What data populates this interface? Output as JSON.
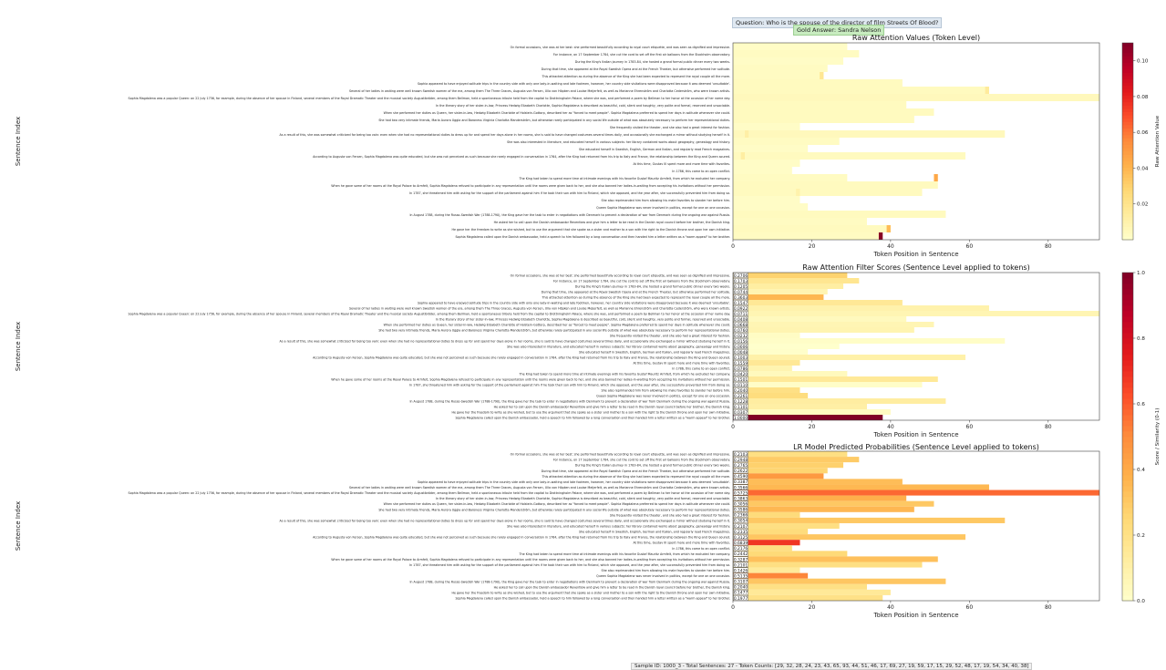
{
  "header": {
    "question": "Question: Who is the spouse of the director of film Streets Of Blood?",
    "gold_answer": "Gold Answer: Sandra Nelson"
  },
  "footer": {
    "sample_info": "Sample ID: 1000_3 - Total Sentences: 27 - Token Counts: [29, 32, 28, 24, 23, 43, 65, 93, 44, 51, 46, 17, 69, 27, 19, 59, 17, 15, 29, 52, 48, 17, 19, 54, 34, 40, 38]"
  },
  "colors": {
    "colormap": [
      "#ffffcc",
      "#ffeda0",
      "#fed976",
      "#feb24c",
      "#fd8d3c",
      "#fc4e2a",
      "#e31a1c",
      "#bd0026",
      "#800026"
    ],
    "cell_border": "#1a1a1a"
  },
  "sentences": [
    "On formal occasions, she was at her best: she performed beautifully according to royal court etiquette, and was seen as dignified and impressive.",
    "For instance, on 17 September 1784, she cut the cord to set off the first air balloons from the Stockholm observatory.",
    "During the King's Italian journey in 1783-84, she hosted a grand formal public dinner every two weeks.",
    "During that time, she appeared at the Royal Swedish Opera and at the French Theater, but otherwise performed her solitude.",
    "This attracted attention as during the absence of the King she had been expected to represent the royal couple all the more.",
    "Sophia appeared to have enjoyed solitude trips in the country side with only one lady-in-waiting and late footmen, however, her country side visitations were disapproved because it was deemed 'unsuitable'.",
    "Several of her ladies in waiting were well known Swedish women of the era, among them The Three Graces, Augusta von Fersen, Ulla von Höpken and Louise Meijerfelt, as well as Marianne Ehrenström and Charlotta Cederström, who were known artists.",
    "Sophia Magdalena was a popular Queen: on 22 July 1756, for example, during the absence of her spouse in Finland, several members of the Royal Dramatic Theater and the musical society Augustibröder, among them Bellman, held a spontaneous tribute held from the capital to Drottningholm Palace, where she was, and performed a poem by Bellman to her honor at the occasion of her name day.",
    "In the literary story of her sister-in-law, Princess Hedwig Elizabeth Charlotte, Sophia Magdalena is described as beautiful, cold, silent and haughty, very polite and formal, reserved and unsociable.",
    "When she performed her duties as Queen, her sister-in-law, Hedwig Elizabeth Charlotte of Holstein-Gottorp, described her as \"forced to meet people\". Sophia Magdalena preferred to spend her days in solitude whenever she could.",
    "She had two very intimate friends, Maria Aurora Uggla and Baroness Virginia Charlotta Manderström, but otherwise rarely participated in any social life outside of what was absolutely necessary to perform her representational duties.",
    "She frequently visited the theater, and she also had a great interest for fashion.",
    "As a result of this, she was somewhat criticized for being too vain: even when she had no representational duties to dress up for and spend her days alone in her rooms, she is said to have changed costumes several times daily, and occasionally she exchanged a mirror without studying herself in it.",
    "She was also interested in literature, and educated herself in various subjects: her library contained works about geography, genealogy and history.",
    "She educated herself in Swedish, English, German and Italian, and regularly read French magazines.",
    "According to Augusta von Fersen, Sophia Magdalena was quite educated, but she was not perceived as such because she rarely engaged in conversation in 1764, after the King had returned from his trip to Italy and France, the relationship between the King and Queen soured.",
    "At this time, Gustav III spent more and more time with favorites.",
    "In 1786, this came to an open conflict.",
    "The King had taken to spend more time at intimate evenings with his favorite Gustaf Mauritz Armfelt, from which he excluded her company.",
    "When he gave some of her rooms at the Royal Palace to Armfelt, Sophia Magdalena refused to participate in any representation until the rooms were given back to her, and she also banned her ladies-in-waiting from accepting his invitations without her permission.",
    "In 1787, she threatened him with asking for the support of the parliament against him if he took their son with him to Finland, which she opposed, and the year after, she successfully prevented him from doing so.",
    "She also reprimanded him from allowing his male favorites to slander her before him.",
    "Queen Sophia Magdalena was never involved in politics, except for one on one occasion.",
    "In August 1788, during the Russo-Swedish War (1788-1790), the King gave her the task to enter in negotiations with Denmark to prevent a declaration of war from Denmark during the ongoing war against Russia.",
    "He asked her to call upon the Danish ambassador Reventlow and give him a letter to be read in the Danish royal council before her brother, the Danish king.",
    "He gave her the freedom to write as she wished, but to use the argument that she spoke as a sister and mother to a son with the right to the Danish throne and upon her own initiative.",
    "Sophia Magdalena called upon the Danish ambassador, held a speech to him followed by a long conversation and then handed him a letter written as a \"warm appeal\" to her brother."
  ],
  "chart_data": [
    {
      "type": "heatmap",
      "title": "Raw Attention Values (Token Level)",
      "xlabel": "Token Position in Sentence",
      "ylabel": "Sentence Index",
      "x_ticks": [
        0,
        20,
        40,
        60,
        80
      ],
      "xlim": [
        0,
        93
      ],
      "colorbar": {
        "label": "Raw Attention Value",
        "range": [
          0,
          0.11
        ],
        "ticks": [
          0.02,
          0.04,
          0.06,
          0.08,
          0.1
        ],
        "tick_labels": [
          "0.02",
          "0.04",
          "0.06",
          "0.08",
          "0.10"
        ]
      },
      "baseline_levels": [
        0.002,
        0.003,
        0.002,
        0.003,
        0.003,
        0.004,
        0.004,
        0.005,
        0.004,
        0.004,
        0.004,
        0.002,
        0.005,
        0.003,
        0.002,
        0.004,
        0.002,
        0.002,
        0.003,
        0.004,
        0.004,
        0.002,
        0.002,
        0.004,
        0.003,
        0.004,
        0.003
      ],
      "highlights": [
        {
          "row": 4,
          "token": 22,
          "value": 0.018
        },
        {
          "row": 6,
          "token": 64,
          "value": 0.015
        },
        {
          "row": 12,
          "token": 3,
          "value": 0.012
        },
        {
          "row": 15,
          "token": 2,
          "value": 0.013
        },
        {
          "row": 18,
          "token": 51,
          "value": 0.045
        },
        {
          "row": 20,
          "token": 16,
          "value": 0.01
        },
        {
          "row": 25,
          "token": 39,
          "value": 0.038
        },
        {
          "row": 26,
          "token": 37,
          "value": 0.108
        }
      ]
    },
    {
      "type": "heatmap",
      "title": "Raw Attention Filter Scores (Sentence Level applied to tokens)",
      "xlabel": "Token Position in Sentence",
      "ylabel": "Sentence Index",
      "x_ticks": [
        0,
        20,
        40,
        60,
        80
      ],
      "xlim": [
        0,
        93
      ],
      "values": [
        0.2706,
        0.1703,
        0.1205,
        0.0744,
        0.3603,
        0.1547,
        0.0922,
        0.0711,
        0.0408,
        0.0668,
        0.076,
        0.0232,
        0.0156,
        0.0006,
        0.0048,
        0.1003,
        0.1559,
        0.0786,
        0.042,
        0.1501,
        0.011,
        0.204,
        0.2261,
        0.1228,
        0.1101,
        0.0307,
        1.0
      ]
    },
    {
      "type": "heatmap",
      "title": "LR Model Predicted Probabilities (Sentence Level applied to tokens)",
      "xlabel": "Token Position in Sentence",
      "ylabel": "Sentence Index",
      "x_ticks": [
        0,
        20,
        40,
        60,
        80
      ],
      "xlim": [
        0,
        93
      ],
      "values": [
        0.2103,
        0.2948,
        0.2765,
        0.2622,
        0.459,
        0.3387,
        0.3566,
        0.5725,
        0.3863,
        0.3056,
        0.3586,
        0.2366,
        0.3054,
        0.2107,
        0.2335,
        0.3125,
        0.6839,
        0.2176,
        0.2442,
        0.3287,
        0.2101,
        0.1426,
        0.5135,
        0.3107,
        0.204,
        0.1477,
        0.1977
      ]
    }
  ],
  "shared_colorbar": {
    "label": "Score / Similarity (0-1)",
    "range": [
      0,
      1
    ],
    "ticks": [
      0,
      0.2,
      0.4,
      0.6,
      0.8,
      1.0
    ],
    "tick_labels": [
      "0.0",
      "0.2",
      "0.4",
      "0.6",
      "0.8",
      "1.0"
    ]
  }
}
